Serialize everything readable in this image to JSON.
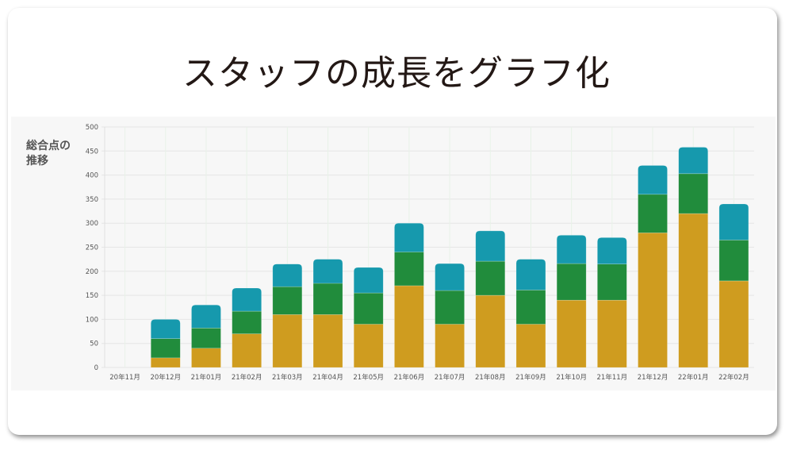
{
  "title": "スタッフの成長をグラフ化",
  "chart_data": {
    "type": "bar",
    "stacked": true,
    "ylabel_lines": [
      "総合点の",
      "推移"
    ],
    "ylim": [
      0,
      500
    ],
    "yticks": [
      0,
      50,
      100,
      150,
      200,
      250,
      300,
      350,
      400,
      450,
      500
    ],
    "grid": true,
    "categories": [
      "20年11月",
      "20年12月",
      "21年01月",
      "21年02月",
      "21年03月",
      "21年04月",
      "21年05月",
      "21年06月",
      "21年07月",
      "21年08月",
      "21年09月",
      "21年10月",
      "21年11月",
      "21年12月",
      "22年01月",
      "22年02月"
    ],
    "series": [
      {
        "color": "#cf9c1f",
        "values": [
          0,
          20,
          40,
          70,
          110,
          110,
          90,
          170,
          90,
          150,
          90,
          140,
          140,
          280,
          320,
          180
        ]
      },
      {
        "color": "#218c3c",
        "values": [
          0,
          40,
          42,
          47,
          58,
          65,
          65,
          70,
          70,
          71,
          71,
          76,
          75,
          80,
          83,
          85
        ]
      },
      {
        "color": "#1699ad",
        "values": [
          0,
          40,
          48,
          48,
          47,
          50,
          53,
          60,
          56,
          63,
          64,
          59,
          55,
          60,
          55,
          75
        ]
      }
    ]
  }
}
